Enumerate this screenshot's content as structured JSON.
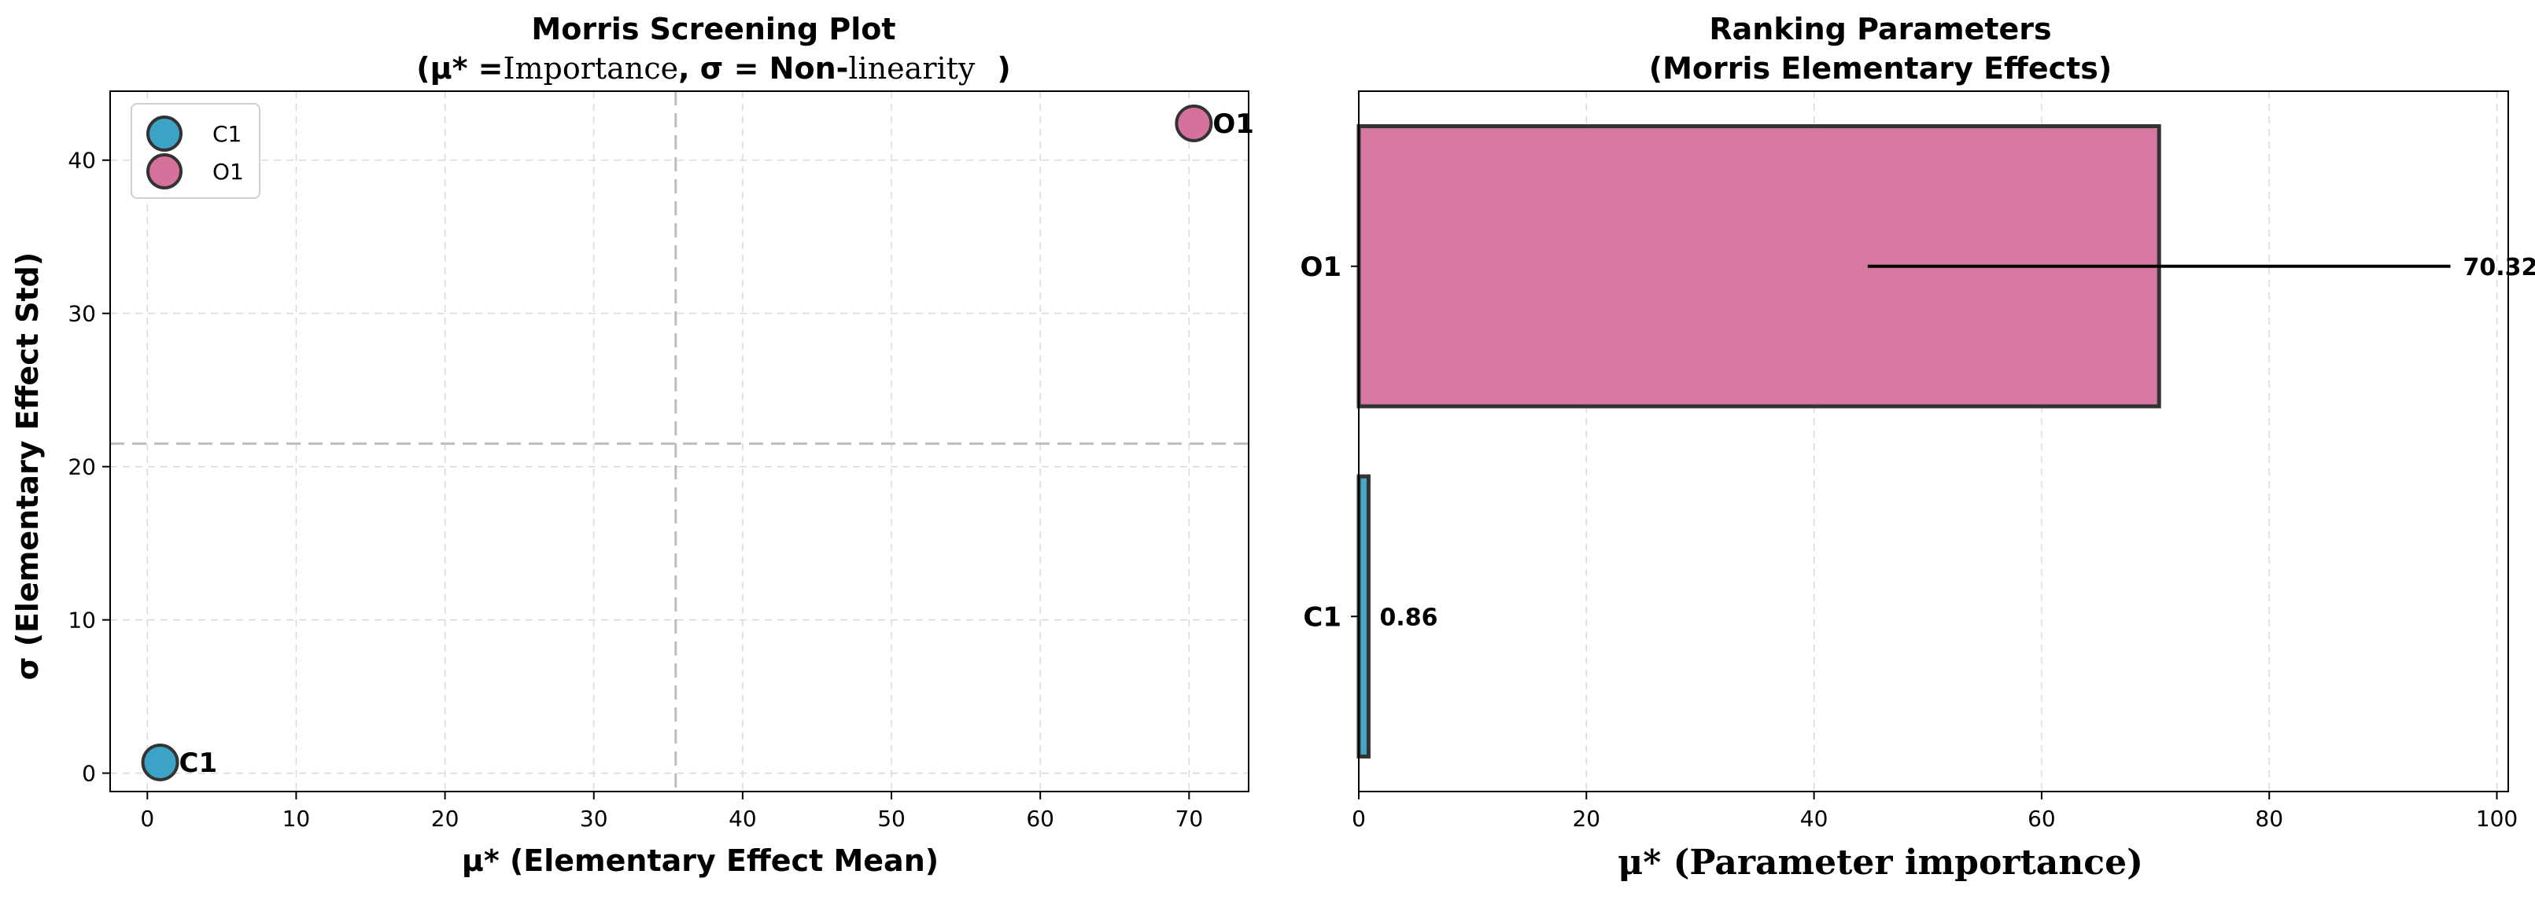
{
  "colors": {
    "C1": "#3ba3c6",
    "O1": "#d5719b",
    "edge": "#333333"
  },
  "chart_data": [
    {
      "type": "scatter",
      "title_line1": "Morris Screening Plot",
      "title_line2_a": "(μ* =",
      "title_line2_b": "Importance",
      "title_line2_c": ", σ = Non-",
      "title_line2_d": "linearity",
      "title_line2_e": ")",
      "xlabel": "μ* (Elementary Effect Mean)",
      "ylabel": "σ (Elementary Effect Std)",
      "xlim": [
        -2.5,
        74
      ],
      "ylim": [
        -1.2,
        44.5
      ],
      "xticks": [
        0,
        10,
        20,
        30,
        40,
        50,
        60,
        70
      ],
      "yticks": [
        0,
        10,
        20,
        30,
        40
      ],
      "grid": true,
      "legend_position": "top-left",
      "ref_lines": {
        "vertical_x": 35.5,
        "horizontal_y": 21.5
      },
      "points": [
        {
          "name": "C1",
          "x": 0.86,
          "y": 0.7,
          "color": "#3ba3c6"
        },
        {
          "name": "O1",
          "x": 70.32,
          "y": 42.4,
          "color": "#d5719b"
        }
      ]
    },
    {
      "type": "bar",
      "orientation": "horizontal",
      "title_line1": "Ranking Parameters",
      "title_line2": "(Morris Elementary Effects)",
      "xlabel": "μ* (Parameter importance)",
      "xlim": [
        0,
        101
      ],
      "xticks": [
        0,
        20,
        40,
        60,
        80,
        100
      ],
      "grid": true,
      "categories": [
        "C1",
        "O1"
      ],
      "values": [
        0.86,
        70.32
      ],
      "errors": [
        0.0,
        25.6
      ],
      "value_labels": [
        "0.86",
        "70.32"
      ],
      "colors": [
        "#3ba3c6",
        "#d5719b"
      ]
    }
  ]
}
